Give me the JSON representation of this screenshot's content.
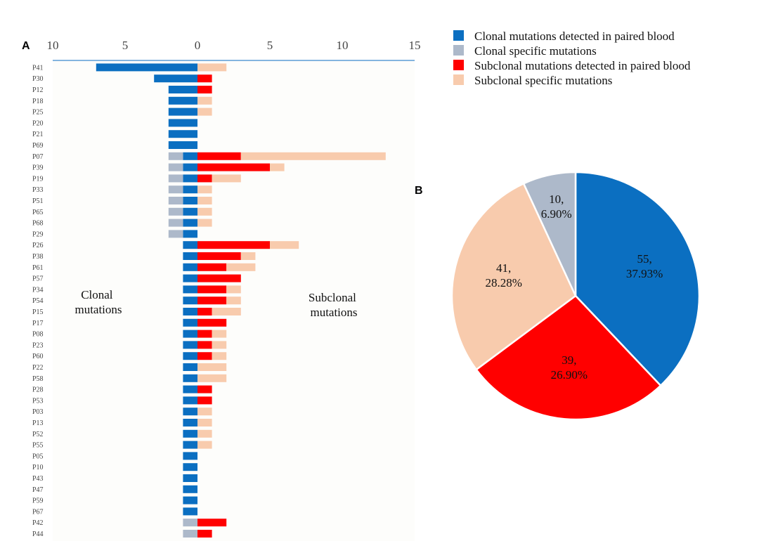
{
  "panel_labels": {
    "a": "A",
    "b": "B"
  },
  "colors": {
    "clonal_blood": "#0B6FC1",
    "clonal_specific": "#ADB9CA",
    "subclonal_blood": "#FF0000",
    "subclonal_specific": "#F8CBAD",
    "axis_line": "#5B9BD5",
    "plot_bg": "#FDFDFB",
    "pie_stroke": "#FFFFFF"
  },
  "chart_data": [
    {
      "type": "bar",
      "orientation": "horizontal-diverging",
      "title": "",
      "x_ticks": [
        "10",
        "5",
        "0",
        "5",
        "10",
        "15"
      ],
      "x_tick_values": [
        -10,
        -5,
        0,
        5,
        10,
        15
      ],
      "xlim": [
        -10,
        15
      ],
      "annotations": {
        "left": [
          "Clonal",
          "mutations"
        ],
        "right": [
          "Subclonal",
          "mutations"
        ]
      },
      "series_names": [
        "Clonal mutations detected in paired blood",
        "Clonal specific mutations",
        "Subclonal mutations detected in paired blood",
        "Subclonal specific mutations"
      ],
      "categories": [
        "P41",
        "P30",
        "P12",
        "P18",
        "P25",
        "P20",
        "P21",
        "P69",
        "P07",
        "P39",
        "P19",
        "P33",
        "P51",
        "P65",
        "P68",
        "P29",
        "P26",
        "P38",
        "P61",
        "P57",
        "P34",
        "P54",
        "P15",
        "P17",
        "P08",
        "P23",
        "P60",
        "P22",
        "P58",
        "P28",
        "P53",
        "P03",
        "P13",
        "P52",
        "P55",
        "P05",
        "P10",
        "P43",
        "P47",
        "P59",
        "P67",
        "P42",
        "P44"
      ],
      "series": [
        {
          "name": "Clonal mutations detected in paired blood",
          "values": [
            7,
            3,
            2,
            2,
            2,
            2,
            2,
            2,
            1,
            1,
            1,
            1,
            1,
            1,
            1,
            1,
            1,
            1,
            1,
            1,
            1,
            1,
            1,
            1,
            1,
            1,
            1,
            1,
            1,
            1,
            1,
            1,
            1,
            1,
            1,
            1,
            1,
            1,
            1,
            1,
            1,
            0,
            0
          ]
        },
        {
          "name": "Clonal specific mutations",
          "values": [
            0,
            0,
            0,
            0,
            0,
            0,
            0,
            0,
            1,
            1,
            1,
            1,
            1,
            1,
            1,
            1,
            0,
            0,
            0,
            0,
            0,
            0,
            0,
            0,
            0,
            0,
            0,
            0,
            0,
            0,
            0,
            0,
            0,
            0,
            0,
            0,
            0,
            0,
            0,
            0,
            0,
            1,
            1
          ]
        },
        {
          "name": "Subclonal mutations detected in paired blood",
          "values": [
            0,
            1,
            1,
            0,
            0,
            0,
            0,
            0,
            3,
            5,
            1,
            0,
            0,
            0,
            0,
            0,
            5,
            3,
            2,
            3,
            2,
            2,
            1,
            2,
            1,
            1,
            1,
            0,
            0,
            1,
            1,
            0,
            0,
            0,
            0,
            0,
            0,
            0,
            0,
            0,
            0,
            2,
            1
          ]
        },
        {
          "name": "Subclonal specific mutations",
          "values": [
            2,
            0,
            0,
            1,
            1,
            0,
            0,
            0,
            10,
            1,
            2,
            1,
            1,
            1,
            1,
            0,
            2,
            1,
            2,
            0,
            1,
            1,
            2,
            0,
            1,
            1,
            1,
            2,
            2,
            0,
            0,
            1,
            1,
            1,
            1,
            0,
            0,
            0,
            0,
            0,
            0,
            0,
            0
          ]
        }
      ]
    },
    {
      "type": "pie",
      "title": "",
      "slices": [
        {
          "name": "Clonal mutations detected in paired blood",
          "value": 55,
          "percent": 37.93,
          "label": [
            "55,",
            "37.93%"
          ]
        },
        {
          "name": "Subclonal mutations detected in paired blood",
          "value": 39,
          "percent": 26.9,
          "label": [
            "39,",
            "26.90%"
          ]
        },
        {
          "name": "Subclonal specific mutations",
          "value": 41,
          "percent": 28.28,
          "label": [
            "41,",
            "28.28%"
          ]
        },
        {
          "name": "Clonal specific mutations",
          "value": 10,
          "percent": 6.9,
          "label": [
            "10,",
            "6.90%"
          ]
        }
      ]
    }
  ]
}
